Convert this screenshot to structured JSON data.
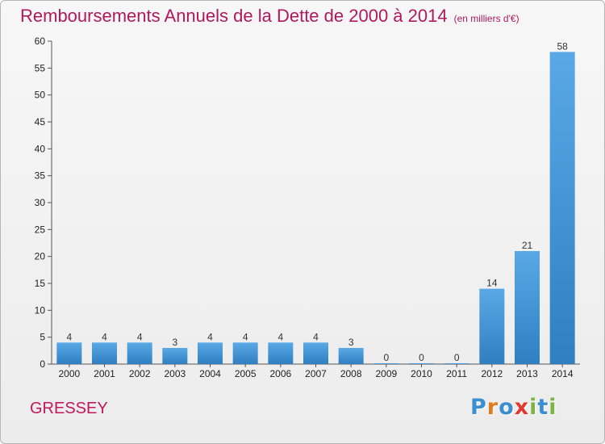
{
  "chart_data": {
    "type": "bar",
    "title": "Remboursements Annuels de la Dette de 2000 à 2014",
    "subtitle": "(en milliers d'€)",
    "categories": [
      "2000",
      "2001",
      "2002",
      "2003",
      "2004",
      "2005",
      "2006",
      "2007",
      "2008",
      "2009",
      "2010",
      "2011",
      "2012",
      "2013",
      "2014"
    ],
    "values": [
      4,
      4,
      4,
      3,
      4,
      4,
      4,
      4,
      3,
      0,
      0,
      0,
      14,
      21,
      58
    ],
    "ylim": [
      0,
      60
    ],
    "yticks": [
      0,
      5,
      10,
      15,
      20,
      25,
      30,
      35,
      40,
      45,
      50,
      55,
      60
    ],
    "grid": false,
    "bar_color": "#3d8fd4",
    "data_labels": true
  },
  "footer": {
    "place": "GRESSEY",
    "logo": {
      "letters": [
        "P",
        "r",
        "o",
        "x",
        "i",
        "t",
        "i"
      ],
      "colors": [
        "#3b8fd0",
        "#e07a1f",
        "#3b8fd0",
        "#e03a2f",
        "#7cb342",
        "#3b8fd0",
        "#7cb342"
      ]
    }
  }
}
